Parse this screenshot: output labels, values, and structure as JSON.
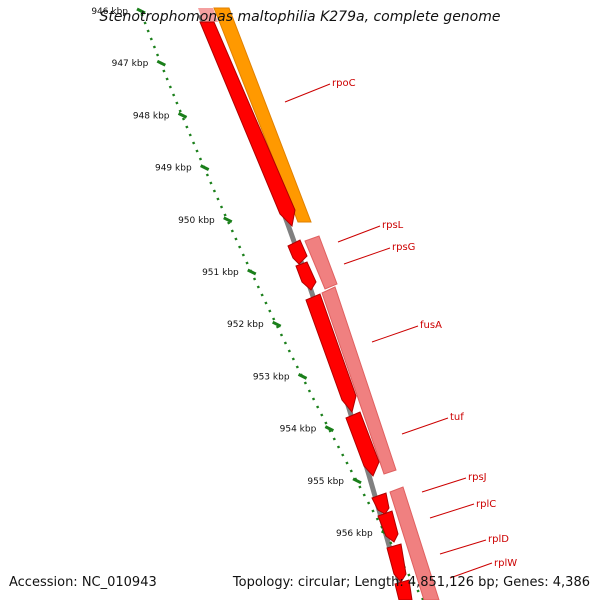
{
  "title": "Stenotrophomonas maltophilia K279a, complete genome",
  "footer": {
    "accession": "Accession: NC_010943",
    "stats": "Topology: circular; Length: 4,851,126 bp; Genes: 4,386"
  },
  "colors": {
    "backbone": "#808080",
    "tick": "#1a7f1a",
    "label": "#cc0000",
    "cds_forward": "#ff0000",
    "cds_light": "#f08080",
    "gene_orange": "#ff9900"
  },
  "ruler": {
    "labels": [
      "946 kbp",
      "947 kbp",
      "948 kbp",
      "949 kbp",
      "950 kbp",
      "951 kbp",
      "952 kbp",
      "953 kbp",
      "954 kbp",
      "955 kbp",
      "956 kbp"
    ]
  },
  "genes": [
    {
      "name": "rpoC"
    },
    {
      "name": "rpsL"
    },
    {
      "name": "rpsG"
    },
    {
      "name": "fusA"
    },
    {
      "name": "tuf"
    },
    {
      "name": "rpsJ"
    },
    {
      "name": "rplC"
    },
    {
      "name": "rplD"
    },
    {
      "name": "rplW"
    }
  ]
}
